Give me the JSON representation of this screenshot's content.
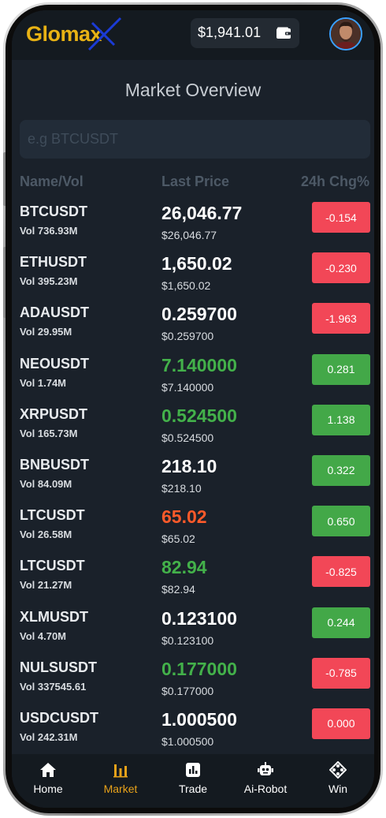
{
  "header": {
    "logo_text": "Glomax",
    "balance": "$1,941.01",
    "wallet_icon": "wallet-icon",
    "avatar_icon": "user-avatar"
  },
  "page_title": "Market Overview",
  "search": {
    "placeholder": "e.g BTCUSDT",
    "value": ""
  },
  "columns": {
    "name": "Name/Vol",
    "price": "Last Price",
    "change": "24h Chg%"
  },
  "colors": {
    "negative": "#f24757",
    "positive": "#43a848",
    "accent": "#e8a21a",
    "logo": "#e8b214"
  },
  "markets": [
    {
      "symbol": "BTCUSDT",
      "vol": "Vol 736.93M",
      "price": "26,046.77",
      "usd": "$26,046.77",
      "change": "-0.154",
      "price_color": "white",
      "change_dir": "neg"
    },
    {
      "symbol": "ETHUSDT",
      "vol": "Vol 395.23M",
      "price": "1,650.02",
      "usd": "$1,650.02",
      "change": "-0.230",
      "price_color": "white",
      "change_dir": "neg"
    },
    {
      "symbol": "ADAUSDT",
      "vol": "Vol 29.95M",
      "price": "0.259700",
      "usd": "$0.259700",
      "change": "-1.963",
      "price_color": "white",
      "change_dir": "neg"
    },
    {
      "symbol": "NEOUSDT",
      "vol": "Vol 1.74M",
      "price": "7.140000",
      "usd": "$7.140000",
      "change": "0.281",
      "price_color": "green",
      "change_dir": "pos"
    },
    {
      "symbol": "XRPUSDT",
      "vol": "Vol 165.73M",
      "price": "0.524500",
      "usd": "$0.524500",
      "change": "1.138",
      "price_color": "green",
      "change_dir": "pos"
    },
    {
      "symbol": "BNBUSDT",
      "vol": "Vol 84.09M",
      "price": "218.10",
      "usd": "$218.10",
      "change": "0.322",
      "price_color": "white",
      "change_dir": "pos"
    },
    {
      "symbol": "LTCUSDT",
      "vol": "Vol 26.58M",
      "price": "65.02",
      "usd": "$65.02",
      "change": "0.650",
      "price_color": "orange",
      "change_dir": "pos"
    },
    {
      "symbol": "LTCUSDT",
      "vol": "Vol 21.27M",
      "price": "82.94",
      "usd": "$82.94",
      "change": "-0.825",
      "price_color": "green",
      "change_dir": "neg"
    },
    {
      "symbol": "XLMUSDT",
      "vol": "Vol 4.70M",
      "price": "0.123100",
      "usd": "$0.123100",
      "change": "0.244",
      "price_color": "white",
      "change_dir": "pos"
    },
    {
      "symbol": "NULSUSDT",
      "vol": "Vol 337545.61",
      "price": "0.177000",
      "usd": "$0.177000",
      "change": "-0.785",
      "price_color": "green",
      "change_dir": "neg"
    },
    {
      "symbol": "USDCUSDT",
      "vol": "Vol 242.31M",
      "price": "1.000500",
      "usd": "$1.000500",
      "change": "0.000",
      "price_color": "white",
      "change_dir": "neg"
    }
  ],
  "nav": [
    {
      "label": "Home",
      "icon": "home-icon",
      "active": false
    },
    {
      "label": "Market",
      "icon": "market-icon",
      "active": true
    },
    {
      "label": "Trade",
      "icon": "trade-icon",
      "active": false
    },
    {
      "label": "Ai-Robot",
      "icon": "robot-icon",
      "active": false
    },
    {
      "label": "Win",
      "icon": "gamepad-icon",
      "active": false
    }
  ]
}
